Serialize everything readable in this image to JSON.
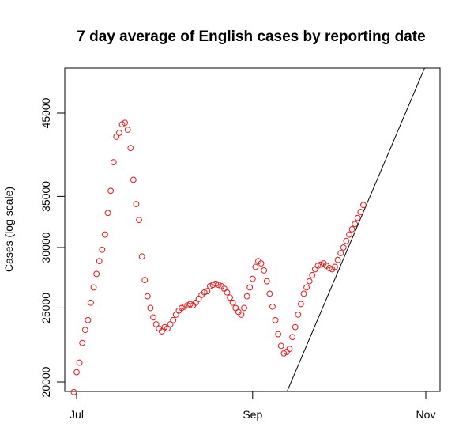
{
  "chart_data": {
    "type": "scatter",
    "title": "7 day average of English cases by reporting date",
    "xlabel": "",
    "ylabel": "Cases (log scale)",
    "y_scale": "log",
    "x_axis": {
      "type": "date",
      "ticks": [
        {
          "date": "2021-07-01",
          "label": "Jul"
        },
        {
          "date": "2021-09-01",
          "label": "Sep"
        },
        {
          "date": "2021-11-01",
          "label": "Nov"
        }
      ]
    },
    "y_ticks": [
      20000,
      25000,
      30000,
      35000,
      45000
    ],
    "grid": false,
    "colors": {
      "points": "#e31a1c",
      "trend": "#000000",
      "axes": "#000000"
    },
    "series": [
      {
        "type": "scatter",
        "marker": "open-circle",
        "points": [
          [
            "2021-06-30",
            19400
          ],
          [
            "2021-07-01",
            20600
          ],
          [
            "2021-07-02",
            21200
          ],
          [
            "2021-07-03",
            22500
          ],
          [
            "2021-07-04",
            23400
          ],
          [
            "2021-07-05",
            24100
          ],
          [
            "2021-07-06",
            25400
          ],
          [
            "2021-07-07",
            26600
          ],
          [
            "2021-07-08",
            27700
          ],
          [
            "2021-07-09",
            28800
          ],
          [
            "2021-07-10",
            29800
          ],
          [
            "2021-07-11",
            31200
          ],
          [
            "2021-07-12",
            33300
          ],
          [
            "2021-07-13",
            35600
          ],
          [
            "2021-07-14",
            38800
          ],
          [
            "2021-07-15",
            41900
          ],
          [
            "2021-07-16",
            42400
          ],
          [
            "2021-07-17",
            43500
          ],
          [
            "2021-07-18",
            43700
          ],
          [
            "2021-07-19",
            42800
          ],
          [
            "2021-07-20",
            40500
          ],
          [
            "2021-07-21",
            36800
          ],
          [
            "2021-07-22",
            34200
          ],
          [
            "2021-07-23",
            32600
          ],
          [
            "2021-07-24",
            29200
          ],
          [
            "2021-07-25",
            27200
          ],
          [
            "2021-07-26",
            25900
          ],
          [
            "2021-07-27",
            25000
          ],
          [
            "2021-07-28",
            24300
          ],
          [
            "2021-07-29",
            23800
          ],
          [
            "2021-07-30",
            23500
          ],
          [
            "2021-07-31",
            23300
          ],
          [
            "2021-08-01",
            23600
          ],
          [
            "2021-08-02",
            23500
          ],
          [
            "2021-08-03",
            23800
          ],
          [
            "2021-08-04",
            24100
          ],
          [
            "2021-08-05",
            24500
          ],
          [
            "2021-08-06",
            24800
          ],
          [
            "2021-08-07",
            25000
          ],
          [
            "2021-08-08",
            25100
          ],
          [
            "2021-08-09",
            25200
          ],
          [
            "2021-08-10",
            25300
          ],
          [
            "2021-08-11",
            25200
          ],
          [
            "2021-08-12",
            25400
          ],
          [
            "2021-08-13",
            25700
          ],
          [
            "2021-08-14",
            26000
          ],
          [
            "2021-08-15",
            26200
          ],
          [
            "2021-08-16",
            26300
          ],
          [
            "2021-08-17",
            26700
          ],
          [
            "2021-08-18",
            26800
          ],
          [
            "2021-08-19",
            26900
          ],
          [
            "2021-08-20",
            26800
          ],
          [
            "2021-08-21",
            26700
          ],
          [
            "2021-08-22",
            26500
          ],
          [
            "2021-08-23",
            26200
          ],
          [
            "2021-08-24",
            25800
          ],
          [
            "2021-08-25",
            25400
          ],
          [
            "2021-08-26",
            25000
          ],
          [
            "2021-08-27",
            24700
          ],
          [
            "2021-08-28",
            24500
          ],
          [
            "2021-08-29",
            25000
          ],
          [
            "2021-08-30",
            25900
          ],
          [
            "2021-08-31",
            26600
          ],
          [
            "2021-09-01",
            27300
          ],
          [
            "2021-09-02",
            28300
          ],
          [
            "2021-09-03",
            28800
          ],
          [
            "2021-09-04",
            28600
          ],
          [
            "2021-09-05",
            28000
          ],
          [
            "2021-09-06",
            27100
          ],
          [
            "2021-09-07",
            26100
          ],
          [
            "2021-09-08",
            25100
          ],
          [
            "2021-09-09",
            24100
          ],
          [
            "2021-09-10",
            23100
          ],
          [
            "2021-09-11",
            22300
          ],
          [
            "2021-09-12",
            21800
          ],
          [
            "2021-09-13",
            21900
          ],
          [
            "2021-09-14",
            22100
          ],
          [
            "2021-09-15",
            22900
          ],
          [
            "2021-09-16",
            23600
          ],
          [
            "2021-09-17",
            24500
          ],
          [
            "2021-09-18",
            25300
          ],
          [
            "2021-09-19",
            26100
          ],
          [
            "2021-09-20",
            26600
          ],
          [
            "2021-09-21",
            27100
          ],
          [
            "2021-09-22",
            27600
          ],
          [
            "2021-09-23",
            28100
          ],
          [
            "2021-09-24",
            28400
          ],
          [
            "2021-09-25",
            28500
          ],
          [
            "2021-09-26",
            28600
          ],
          [
            "2021-09-27",
            28400
          ],
          [
            "2021-09-28",
            28200
          ],
          [
            "2021-09-29",
            28100
          ],
          [
            "2021-09-30",
            28300
          ],
          [
            "2021-10-01",
            28900
          ],
          [
            "2021-10-02",
            29500
          ],
          [
            "2021-10-03",
            30000
          ],
          [
            "2021-10-04",
            30600
          ],
          [
            "2021-10-05",
            31200
          ],
          [
            "2021-10-06",
            31700
          ],
          [
            "2021-10-07",
            32200
          ],
          [
            "2021-10-08",
            32800
          ],
          [
            "2021-10-09",
            33400
          ],
          [
            "2021-10-10",
            34100
          ]
        ]
      },
      {
        "type": "line",
        "points": [
          [
            "2021-09-12",
            19000
          ],
          [
            "2021-11-01",
            52000
          ]
        ]
      }
    ]
  }
}
